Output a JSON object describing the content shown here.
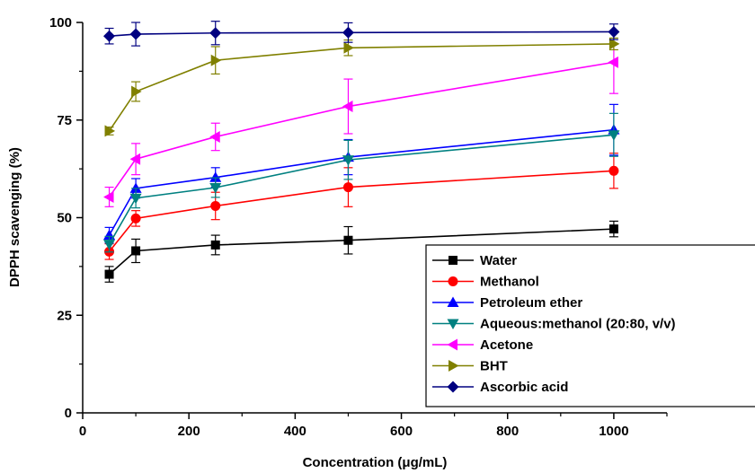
{
  "chart_data": {
    "type": "line",
    "xlabel": "Concentration (μg/mL)",
    "ylabel": "DPPH scavenging (%)",
    "xlim": [
      0,
      1100
    ],
    "ylim": [
      0,
      100
    ],
    "x_ticks": [
      0,
      200,
      400,
      600,
      800,
      1000
    ],
    "x_tick_labels": [
      "0",
      "200",
      "400",
      "600",
      "800",
      "1000"
    ],
    "y_ticks": [
      0,
      25,
      50,
      75,
      100
    ],
    "y_tick_labels": [
      "0",
      "25",
      "50",
      "75",
      "100"
    ],
    "grid": false,
    "legend_position": "bottom-right",
    "x": [
      50,
      100,
      250,
      500,
      1000
    ],
    "series": [
      {
        "name": "Water",
        "color": "#000000",
        "marker": "square",
        "values": [
          35.5,
          41.5,
          43.0,
          44.2,
          47.1
        ],
        "errors": [
          2.0,
          3.0,
          2.5,
          3.5,
          2.0
        ]
      },
      {
        "name": "Methanol",
        "color": "#ff0000",
        "marker": "circle",
        "values": [
          41.3,
          49.8,
          53.0,
          57.8,
          62.0
        ],
        "errors": [
          2.0,
          2.0,
          3.5,
          5.0,
          4.5
        ]
      },
      {
        "name": "Petroleum ether",
        "color": "#0000ff",
        "marker": "triangle-up",
        "values": [
          45.5,
          57.5,
          60.3,
          65.5,
          72.5
        ],
        "errors": [
          2.0,
          2.5,
          2.5,
          4.5,
          6.5
        ]
      },
      {
        "name": "Aqueous:methanol (20:80, v/v)",
        "color": "#008080",
        "marker": "triangle-down",
        "values": [
          43.2,
          55.0,
          57.7,
          64.8,
          71.2
        ],
        "errors": [
          2.0,
          2.5,
          2.5,
          5.0,
          5.5
        ]
      },
      {
        "name": "Acetone",
        "color": "#ff00ff",
        "marker": "triangle-left",
        "values": [
          55.3,
          65.0,
          70.7,
          78.5,
          89.8
        ],
        "errors": [
          2.5,
          4.0,
          3.5,
          7.0,
          8.0
        ]
      },
      {
        "name": "BHT",
        "color": "#808000",
        "marker": "triangle-right",
        "values": [
          72.2,
          82.3,
          90.3,
          93.5,
          94.5
        ],
        "errors": [
          1.0,
          2.5,
          3.5,
          2.0,
          1.5
        ]
      },
      {
        "name": "Ascorbic acid",
        "color": "#000080",
        "marker": "diamond",
        "values": [
          96.5,
          97.0,
          97.3,
          97.4,
          97.6
        ],
        "errors": [
          2.0,
          3.0,
          3.0,
          2.5,
          2.0
        ]
      }
    ]
  }
}
